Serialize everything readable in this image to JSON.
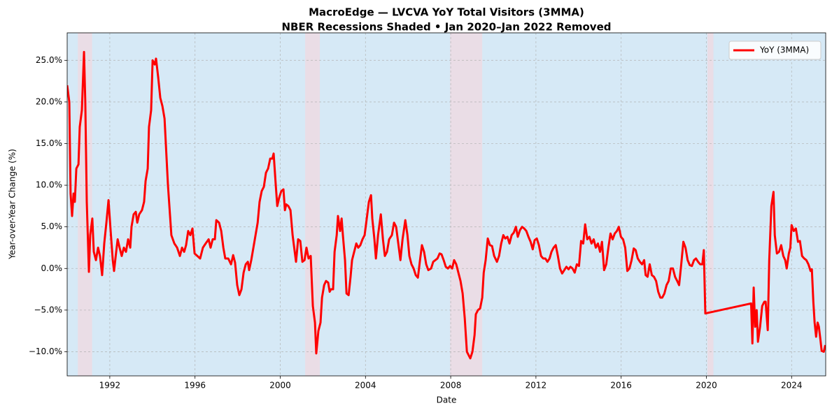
{
  "chart_data": {
    "type": "line",
    "title": "MacroEdge — LVCVA YoY Total Visitors (3MMA)",
    "subtitle": "NBER Recessions Shaded • Jan 2020–Jan 2022 Removed",
    "xlabel": "Date",
    "ylabel": "Year-over-Year Change (%)",
    "xlim": [
      1990,
      2025.6
    ],
    "ylim": [
      -12.9,
      28.3
    ],
    "xticks": [
      1992,
      1996,
      2000,
      2004,
      2008,
      2012,
      2016,
      2020,
      2024
    ],
    "yticks": [
      {
        "value": -10,
        "label": "−10.0%"
      },
      {
        "value": -5,
        "label": "−5.0%"
      },
      {
        "value": 0,
        "label": "0.0%"
      },
      {
        "value": 5,
        "label": "5.0%"
      },
      {
        "value": 10,
        "label": "10.0%"
      },
      {
        "value": 15,
        "label": "15.0%"
      },
      {
        "value": 20,
        "label": "20.0%"
      },
      {
        "value": 25,
        "label": "25.0%"
      }
    ],
    "grid": true,
    "legend": "upper right",
    "background_color": "#d6e9f6",
    "recession_color": "#eadde6",
    "recessions": [
      [
        1990.5,
        1991.17
      ],
      [
        2001.17,
        2001.86
      ],
      [
        2007.97,
        2009.48
      ],
      [
        2020.05,
        2020.33
      ]
    ],
    "x": [
      1990.0,
      1990.1,
      1990.16,
      1990.23,
      1990.3,
      1990.36,
      1990.43,
      1990.53,
      1990.59,
      1990.69,
      1990.79,
      1990.85,
      1990.92,
      1991.02,
      1991.08,
      1991.18,
      1991.25,
      1991.35,
      1991.45,
      1991.54,
      1991.64,
      1991.74,
      1991.84,
      1991.94,
      1992.04,
      1992.14,
      1992.2,
      1992.3,
      1992.37,
      1992.46,
      1992.56,
      1992.66,
      1992.76,
      1992.86,
      1992.96,
      1993.02,
      1993.12,
      1993.22,
      1993.29,
      1993.38,
      1993.51,
      1993.61,
      1993.68,
      1993.78,
      1993.84,
      1993.94,
      1994.01,
      1994.11,
      1994.17,
      1994.27,
      1994.37,
      1994.47,
      1994.57,
      1994.63,
      1994.73,
      1994.89,
      1995.03,
      1995.16,
      1995.29,
      1995.39,
      1995.49,
      1995.58,
      1995.68,
      1995.78,
      1995.88,
      1995.98,
      1996.11,
      1996.24,
      1996.37,
      1996.5,
      1996.64,
      1996.73,
      1996.83,
      1996.93,
      1997.0,
      1997.13,
      1997.23,
      1997.33,
      1997.42,
      1997.56,
      1997.69,
      1997.79,
      1997.88,
      1997.98,
      1998.08,
      1998.18,
      1998.28,
      1998.38,
      1998.48,
      1998.54,
      1998.64,
      1998.74,
      1998.84,
      1998.94,
      1999.03,
      1999.13,
      1999.23,
      1999.33,
      1999.43,
      1999.53,
      1999.63,
      1999.69,
      1999.79,
      1999.86,
      1999.95,
      2000.05,
      2000.15,
      2000.22,
      2000.28,
      2000.38,
      2000.48,
      2000.58,
      2000.68,
      2000.74,
      2000.84,
      2000.94,
      2001.04,
      2001.14,
      2001.23,
      2001.33,
      2001.43,
      2001.53,
      2001.63,
      2001.69,
      2001.79,
      2001.89,
      2001.96,
      2002.06,
      2002.15,
      2002.25,
      2002.32,
      2002.38,
      2002.48,
      2002.55,
      2002.65,
      2002.71,
      2002.81,
      2002.88,
      2002.94,
      2003.04,
      2003.11,
      2003.21,
      2003.3,
      2003.37,
      2003.47,
      2003.57,
      2003.66,
      2003.76,
      2003.86,
      2003.96,
      2004.06,
      2004.16,
      2004.26,
      2004.32,
      2004.42,
      2004.49,
      2004.59,
      2004.72,
      2004.82,
      2004.91,
      2005.01,
      2005.11,
      2005.24,
      2005.34,
      2005.44,
      2005.54,
      2005.64,
      2005.74,
      2005.87,
      2005.97,
      2006.06,
      2006.16,
      2006.26,
      2006.36,
      2006.46,
      2006.56,
      2006.65,
      2006.75,
      2006.85,
      2006.95,
      2007.08,
      2007.18,
      2007.28,
      2007.38,
      2007.48,
      2007.57,
      2007.67,
      2007.77,
      2007.87,
      2007.97,
      2008.07,
      2008.16,
      2008.26,
      2008.36,
      2008.46,
      2008.56,
      2008.66,
      2008.76,
      2008.86,
      2008.92,
      2009.02,
      2009.12,
      2009.18,
      2009.28,
      2009.38,
      2009.48,
      2009.55,
      2009.64,
      2009.74,
      2009.84,
      2009.94,
      2010.04,
      2010.17,
      2010.27,
      2010.37,
      2010.47,
      2010.56,
      2010.66,
      2010.76,
      2010.86,
      2010.96,
      2011.06,
      2011.15,
      2011.25,
      2011.35,
      2011.45,
      2011.55,
      2011.65,
      2011.75,
      2011.85,
      2011.94,
      2012.04,
      2012.14,
      2012.24,
      2012.34,
      2012.44,
      2012.54,
      2012.64,
      2012.73,
      2012.83,
      2012.93,
      2013.03,
      2013.13,
      2013.23,
      2013.33,
      2013.43,
      2013.53,
      2013.62,
      2013.72,
      2013.82,
      2013.92,
      2014.02,
      2014.12,
      2014.22,
      2014.31,
      2014.41,
      2014.51,
      2014.61,
      2014.71,
      2014.81,
      2014.91,
      2015.01,
      2015.1,
      2015.2,
      2015.3,
      2015.4,
      2015.5,
      2015.6,
      2015.7,
      2015.8,
      2015.89,
      2015.99,
      2016.09,
      2016.19,
      2016.29,
      2016.39,
      2016.49,
      2016.59,
      2016.68,
      2016.78,
      2016.88,
      2016.98,
      2017.08,
      2017.15,
      2017.24,
      2017.34,
      2017.44,
      2017.54,
      2017.64,
      2017.74,
      2017.84,
      2017.93,
      2018.03,
      2018.13,
      2018.23,
      2018.33,
      2018.43,
      2018.53,
      2018.63,
      2018.72,
      2018.82,
      2018.92,
      2019.02,
      2019.12,
      2019.22,
      2019.32,
      2019.42,
      2019.51,
      2019.61,
      2019.71,
      2019.81,
      2019.88,
      2019.95,
      2022.1,
      2022.16,
      2022.22,
      2022.29,
      2022.36,
      2022.42,
      2022.52,
      2022.62,
      2022.72,
      2022.78,
      2022.88,
      2022.95,
      2023.05,
      2023.15,
      2023.21,
      2023.31,
      2023.41,
      2023.51,
      2023.61,
      2023.7,
      2023.77,
      2023.87,
      2023.94,
      2024.0,
      2024.1,
      2024.2,
      2024.3,
      2024.39,
      2024.49,
      2024.59,
      2024.69,
      2024.79,
      2024.89,
      2024.95,
      2025.02,
      2025.08,
      2025.15,
      2025.22,
      2025.28,
      2025.35,
      2025.41,
      2025.51,
      2025.58
    ],
    "series": [
      {
        "name": "YoY (3MMA)",
        "color": "#ff0000",
        "values": [
          22,
          20,
          9,
          6.3,
          9,
          8,
          12,
          12.5,
          17,
          19,
          26,
          20,
          8,
          -0.4,
          4,
          6,
          2,
          1,
          2.5,
          1.5,
          -0.8,
          3,
          5.5,
          8.2,
          4.5,
          1,
          -0.3,
          2,
          3.5,
          2.5,
          1.5,
          2.5,
          2,
          3.5,
          2.5,
          5,
          6.5,
          6.8,
          5.5,
          6.5,
          7,
          8,
          10.5,
          12,
          17,
          19,
          25,
          24.5,
          25.2,
          23,
          20.5,
          19.5,
          18,
          15,
          10,
          4,
          3,
          2.5,
          1.5,
          2.5,
          2,
          2.8,
          4.5,
          4,
          4.8,
          1.8,
          1.5,
          1.2,
          2.5,
          3,
          3.5,
          2.5,
          3.5,
          3.5,
          5.8,
          5.5,
          4.5,
          2.5,
          1.2,
          1.2,
          0.5,
          1.6,
          0.7,
          -2,
          -3.2,
          -2.5,
          -0.5,
          0.5,
          0.8,
          -0.2,
          1,
          2.5,
          4,
          5.5,
          8,
          9.3,
          9.8,
          11.5,
          12,
          13.2,
          13.2,
          13.8,
          10,
          7.5,
          8.5,
          9.3,
          9.5,
          7,
          7.7,
          7.5,
          7,
          4,
          2,
          0.8,
          3.5,
          3.3,
          0.8,
          1,
          2.5,
          1.2,
          1.5,
          -4.5,
          -6.5,
          -10.2,
          -7.5,
          -6.5,
          -3.5,
          -2,
          -1.5,
          -1.7,
          -2.8,
          -2.5,
          -2.5,
          2,
          4,
          6.3,
          4.5,
          6,
          4,
          1,
          -3,
          -3.2,
          -1,
          1,
          2,
          3,
          2.5,
          2.8,
          3.5,
          4,
          6,
          8,
          8.8,
          6,
          3.5,
          1.2,
          4,
          6.5,
          3.5,
          1.5,
          2,
          3.5,
          4,
          5.5,
          5,
          3,
          1,
          3.5,
          5.8,
          4,
          1.5,
          0.5,
          0,
          -0.8,
          -1.1,
          1,
          2.8,
          2,
          0.5,
          -0.2,
          0,
          0.8,
          1,
          1.2,
          1.8,
          1.7,
          1,
          0.2,
          0,
          0.3,
          0,
          1,
          0.5,
          -0.5,
          -1.5,
          -3,
          -6,
          -10,
          -10.5,
          -10.8,
          -10,
          -8,
          -5.5,
          -5,
          -4.8,
          -3.5,
          -0.5,
          1,
          3.6,
          2.8,
          2.7,
          1.5,
          0.8,
          1.5,
          3,
          4,
          3.6,
          3.8,
          3,
          4,
          4.3,
          5,
          3.8,
          4.6,
          5,
          4.8,
          4.5,
          3.8,
          3.2,
          2.3,
          3.4,
          3.6,
          2.8,
          1.5,
          1.2,
          1.2,
          0.8,
          1.2,
          2,
          2.5,
          2.8,
          1.5,
          0,
          -0.6,
          -0.2,
          0.2,
          -0.1,
          0.2,
          0,
          -0.5,
          0.5,
          0.3,
          3.3,
          3,
          5.3,
          3.5,
          3.8,
          3,
          3.5,
          2.5,
          3,
          2,
          3.2,
          -0.2,
          0.5,
          2.5,
          4.2,
          3.5,
          4.2,
          4.5,
          5,
          3.8,
          3.5,
          2.5,
          -0.3,
          0,
          1,
          2.4,
          2.2,
          1.2,
          0.8,
          0.5,
          1,
          -0.8,
          -1,
          0.5,
          -0.8,
          -1,
          -1.5,
          -2.8,
          -3.5,
          -3.5,
          -3,
          -2,
          -1.5,
          0,
          0,
          -1,
          -1.5,
          -2,
          0.5,
          3.2,
          2.5,
          1,
          0.4,
          0.3,
          1,
          1.2,
          0.8,
          0.5,
          0.5,
          2.2,
          -5.4,
          -4.2,
          -9,
          -2.3,
          -7,
          -5,
          -8.8,
          -7,
          -4.5,
          -4,
          -4,
          -7.4,
          1,
          7.5,
          9.2,
          4,
          1.8,
          2,
          2.8,
          1.5,
          1,
          0,
          1.8,
          2.5,
          5.2,
          4.5,
          4.8,
          3.2,
          3.3,
          1.5,
          1.2,
          1,
          0.5,
          -0.3,
          -0.1,
          -4,
          -6.5,
          -8.2,
          -6.5,
          -7,
          -8.5,
          -9.9,
          -10,
          -9.2
        ]
      }
    ]
  }
}
